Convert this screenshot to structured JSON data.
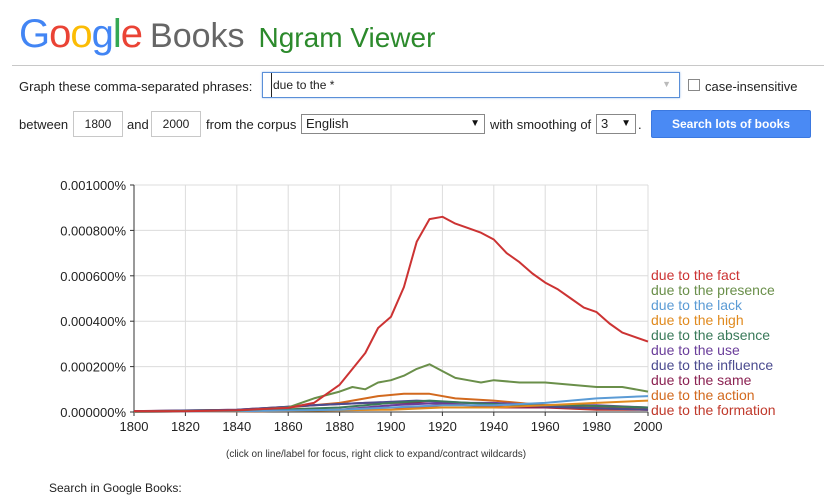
{
  "header": {
    "logo_letters": [
      {
        "ch": "G",
        "color": "#4285F4"
      },
      {
        "ch": "o",
        "color": "#EA4335"
      },
      {
        "ch": "o",
        "color": "#FBBC05"
      },
      {
        "ch": "g",
        "color": "#4285F4"
      },
      {
        "ch": "l",
        "color": "#34A853"
      },
      {
        "ch": "e",
        "color": "#EA4335"
      }
    ],
    "books": "Books",
    "ngram": "Ngram Viewer"
  },
  "form": {
    "phrases_label": "Graph these comma-separated phrases:",
    "phrases_value": "due to the *",
    "case_label": "case-insensitive",
    "between_label": "between",
    "year_start": "1800",
    "and_label": "and",
    "year_end": "2000",
    "corpus_label": "from the corpus",
    "corpus_value": "English",
    "smoothing_label": "with smoothing of",
    "smoothing_value": "3",
    "period": ".",
    "search_button": "Search lots of books"
  },
  "chart_data": {
    "type": "line",
    "x_range": [
      1800,
      2000
    ],
    "y_range": [
      0,
      0.001
    ],
    "x_ticks": [
      "1800",
      "1820",
      "1840",
      "1860",
      "1880",
      "1900",
      "1920",
      "1940",
      "1960",
      "1980",
      "2000"
    ],
    "y_ticks": [
      "0.000000%",
      "0.000200%",
      "0.000400%",
      "0.000600%",
      "0.000800%",
      "0.001000%"
    ],
    "grid": true,
    "legend_position": "right",
    "series": [
      {
        "name": "due to the fact",
        "color": "#cc3333",
        "points": [
          [
            1800,
            4e-06
          ],
          [
            1820,
            3e-06
          ],
          [
            1840,
            8e-06
          ],
          [
            1860,
            1.8e-05
          ],
          [
            1870,
            4e-05
          ],
          [
            1880,
            0.00012
          ],
          [
            1890,
            0.00026
          ],
          [
            1895,
            0.00037
          ],
          [
            1900,
            0.00042
          ],
          [
            1905,
            0.00055
          ],
          [
            1910,
            0.00075
          ],
          [
            1915,
            0.00085
          ],
          [
            1920,
            0.00086
          ],
          [
            1925,
            0.00083
          ],
          [
            1930,
            0.00081
          ],
          [
            1935,
            0.00079
          ],
          [
            1940,
            0.00076
          ],
          [
            1945,
            0.0007
          ],
          [
            1950,
            0.00066
          ],
          [
            1955,
            0.00061
          ],
          [
            1960,
            0.00057
          ],
          [
            1965,
            0.00054
          ],
          [
            1970,
            0.0005
          ],
          [
            1975,
            0.00046
          ],
          [
            1980,
            0.00044
          ],
          [
            1985,
            0.00039
          ],
          [
            1990,
            0.00035
          ],
          [
            1995,
            0.00033
          ],
          [
            2000,
            0.00031
          ]
        ]
      },
      {
        "name": "due to the presence",
        "color": "#6a8f4a",
        "points": [
          [
            1800,
            2e-06
          ],
          [
            1840,
            6e-06
          ],
          [
            1860,
            2e-05
          ],
          [
            1870,
            6e-05
          ],
          [
            1880,
            9e-05
          ],
          [
            1885,
            0.00011
          ],
          [
            1890,
            0.0001
          ],
          [
            1895,
            0.00013
          ],
          [
            1900,
            0.00014
          ],
          [
            1905,
            0.00016
          ],
          [
            1910,
            0.00019
          ],
          [
            1915,
            0.00021
          ],
          [
            1920,
            0.00018
          ],
          [
            1925,
            0.00015
          ],
          [
            1930,
            0.00014
          ],
          [
            1935,
            0.00013
          ],
          [
            1940,
            0.00014
          ],
          [
            1950,
            0.00013
          ],
          [
            1960,
            0.00013
          ],
          [
            1970,
            0.00012
          ],
          [
            1980,
            0.00011
          ],
          [
            1990,
            0.00011
          ],
          [
            2000,
            9e-05
          ]
        ]
      },
      {
        "name": "due to the lack",
        "color": "#5b9bd5",
        "points": [
          [
            1800,
            1e-06
          ],
          [
            1850,
            5e-06
          ],
          [
            1880,
            1e-05
          ],
          [
            1900,
            2e-05
          ],
          [
            1920,
            3e-05
          ],
          [
            1940,
            3e-05
          ],
          [
            1960,
            4e-05
          ],
          [
            1980,
            6e-05
          ],
          [
            2000,
            7e-05
          ]
        ]
      },
      {
        "name": "due to the high",
        "color": "#e08a1e",
        "points": [
          [
            1800,
            1e-06
          ],
          [
            1850,
            4e-06
          ],
          [
            1880,
            8e-06
          ],
          [
            1900,
            1e-05
          ],
          [
            1920,
            2e-05
          ],
          [
            1940,
            2e-05
          ],
          [
            1960,
            3e-05
          ],
          [
            1980,
            4e-05
          ],
          [
            2000,
            5e-05
          ]
        ]
      },
      {
        "name": "due to the absence",
        "color": "#3a7a5a",
        "points": [
          [
            1800,
            2e-06
          ],
          [
            1850,
            8e-06
          ],
          [
            1880,
            2e-05
          ],
          [
            1900,
            4e-05
          ],
          [
            1915,
            5e-05
          ],
          [
            1930,
            4e-05
          ],
          [
            1950,
            3e-05
          ],
          [
            1970,
            3e-05
          ],
          [
            2000,
            2e-05
          ]
        ]
      },
      {
        "name": "due to the use",
        "color": "#6a3d9a",
        "points": [
          [
            1800,
            1e-06
          ],
          [
            1850,
            5e-06
          ],
          [
            1880,
            1e-05
          ],
          [
            1900,
            3e-05
          ],
          [
            1920,
            4e-05
          ],
          [
            1940,
            4e-05
          ],
          [
            1960,
            3e-05
          ],
          [
            1980,
            3e-05
          ],
          [
            2000,
            2e-05
          ]
        ]
      },
      {
        "name": "due to the influence",
        "color": "#4b4b8f",
        "points": [
          [
            1800,
            3e-06
          ],
          [
            1840,
            1e-05
          ],
          [
            1870,
            3e-05
          ],
          [
            1890,
            4e-05
          ],
          [
            1910,
            5e-05
          ],
          [
            1930,
            4e-05
          ],
          [
            1950,
            3e-05
          ],
          [
            1970,
            2e-05
          ],
          [
            2000,
            1e-05
          ]
        ]
      },
      {
        "name": "due to the same",
        "color": "#8b2252",
        "points": [
          [
            1800,
            4e-06
          ],
          [
            1840,
            1e-05
          ],
          [
            1870,
            3e-05
          ],
          [
            1890,
            4e-05
          ],
          [
            1910,
            4e-05
          ],
          [
            1930,
            3e-05
          ],
          [
            1950,
            2e-05
          ],
          [
            1970,
            2e-05
          ],
          [
            2000,
            1e-05
          ]
        ]
      },
      {
        "name": "due to the action",
        "color": "#d2691e",
        "points": [
          [
            1800,
            2e-06
          ],
          [
            1850,
            1e-05
          ],
          [
            1880,
            4e-05
          ],
          [
            1895,
            7e-05
          ],
          [
            1905,
            8e-05
          ],
          [
            1915,
            8e-05
          ],
          [
            1925,
            6e-05
          ],
          [
            1940,
            5e-05
          ],
          [
            1960,
            3e-05
          ],
          [
            1980,
            2e-05
          ],
          [
            2000,
            2e-05
          ]
        ]
      },
      {
        "name": "due to the formation",
        "color": "#c0392b",
        "points": [
          [
            1800,
            1e-06
          ],
          [
            1850,
            4e-06
          ],
          [
            1880,
            1e-05
          ],
          [
            1900,
            2e-05
          ],
          [
            1920,
            2e-05
          ],
          [
            1940,
            2e-05
          ],
          [
            1960,
            2e-05
          ],
          [
            1980,
            1e-05
          ],
          [
            2000,
            1e-05
          ]
        ]
      }
    ]
  },
  "chart_note": "(click on line/label for focus, right click to expand/contract wildcards)",
  "search_in": "Search in Google Books:"
}
